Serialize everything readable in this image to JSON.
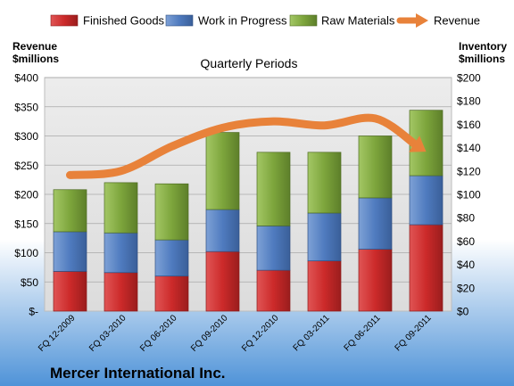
{
  "chart_data": {
    "type": "bar",
    "stacked": true,
    "title": "Quarterly Periods",
    "company": "Mercer International Inc.",
    "ylabel_left": [
      "Revenue",
      "$millions"
    ],
    "ylabel_right": [
      "Inventory",
      "$millions"
    ],
    "categories": [
      "FQ 12-2009",
      "FQ 03-2010",
      "FQ 06-2010",
      "FQ 09-2010",
      "FQ 12-2010",
      "FQ 03-2011",
      "FQ 06-2011",
      "FQ 09-2011"
    ],
    "series": [
      {
        "name": "Finished Goods",
        "values": [
          34,
          33,
          30,
          51,
          35,
          43,
          53,
          74
        ],
        "color": "#cc2a2a"
      },
      {
        "name": "Work in Progress",
        "values": [
          34,
          34,
          31,
          36,
          38,
          41,
          44,
          42
        ],
        "color": "#4f7bbf"
      },
      {
        "name": "Raw Materials",
        "values": [
          36,
          43,
          48,
          66,
          63,
          52,
          53,
          56
        ],
        "color": "#7da53c"
      }
    ],
    "line_series": {
      "name": "Revenue",
      "values": [
        233,
        240,
        282,
        314,
        325,
        318,
        330,
        273
      ],
      "color": "#e8823a"
    },
    "yleft_ticks": [
      "$-",
      "$50",
      "$100",
      "$150",
      "$200",
      "$250",
      "$300",
      "$350",
      "$400"
    ],
    "yleft_range": [
      0,
      400
    ],
    "yright_ticks": [
      "$0",
      "$20",
      "$40",
      "$60",
      "$80",
      "$100",
      "$120",
      "$140",
      "$160",
      "$180",
      "$200"
    ],
    "yright_range": [
      0,
      200
    ],
    "grid": true,
    "legend_position": "top"
  }
}
